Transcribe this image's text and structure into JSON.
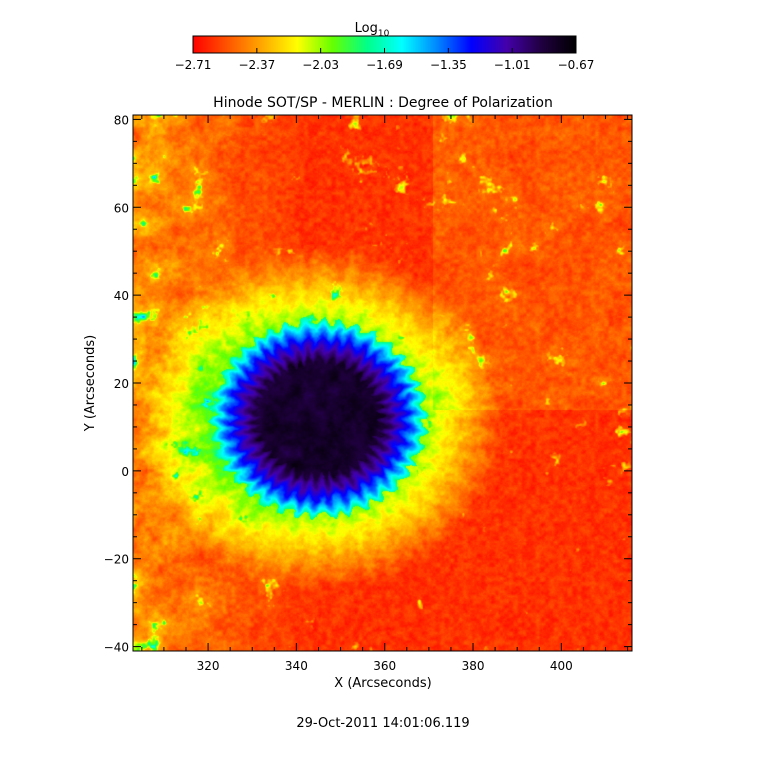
{
  "chart_data": {
    "type": "heatmap",
    "title": "Hinode SOT/SP - MERLIN : Degree of Polarization",
    "xlabel": "X (Arcseconds)",
    "ylabel": "Y (Arcseconds)",
    "xlim": [
      303,
      416
    ],
    "ylim": [
      -41,
      81
    ],
    "x_ticks": [
      320,
      340,
      360,
      380,
      400
    ],
    "y_ticks": [
      -40,
      -20,
      0,
      20,
      40,
      60,
      80
    ],
    "x_tick_labels": [
      "320",
      "340",
      "360",
      "380",
      "400"
    ],
    "y_tick_labels": [
      "−40",
      "−20",
      "0",
      "20",
      "40",
      "60",
      "80"
    ],
    "colorbar": {
      "label_base": "Log",
      "label_subscript": "10",
      "min": -2.71,
      "max": -0.67,
      "ticks": [
        -2.71,
        -2.37,
        -2.03,
        -1.69,
        -1.35,
        -1.01,
        -0.67
      ],
      "tick_labels": [
        "−2.71",
        "−2.37",
        "−2.03",
        "−1.69",
        "−1.35",
        "−1.01",
        "−0.67"
      ],
      "colormap": [
        "#ff0000",
        "#ff5500",
        "#ffaa00",
        "#ffff00",
        "#66ff00",
        "#00ff88",
        "#00ffff",
        "#0088ff",
        "#0000ff",
        "#4400aa",
        "#200040",
        "#000000"
      ]
    },
    "features": {
      "umbra_center": [
        345,
        12
      ],
      "umbra_radius_x": 14,
      "umbra_radius_y": 13,
      "penumbra_outer_radius": 24,
      "level_quiet_sun": -2.6,
      "level_penumbra": -1.2,
      "level_umbra": -0.8
    },
    "grid": false,
    "legend": "none"
  },
  "timestamp": "29-Oct-2011 14:01:06.119"
}
